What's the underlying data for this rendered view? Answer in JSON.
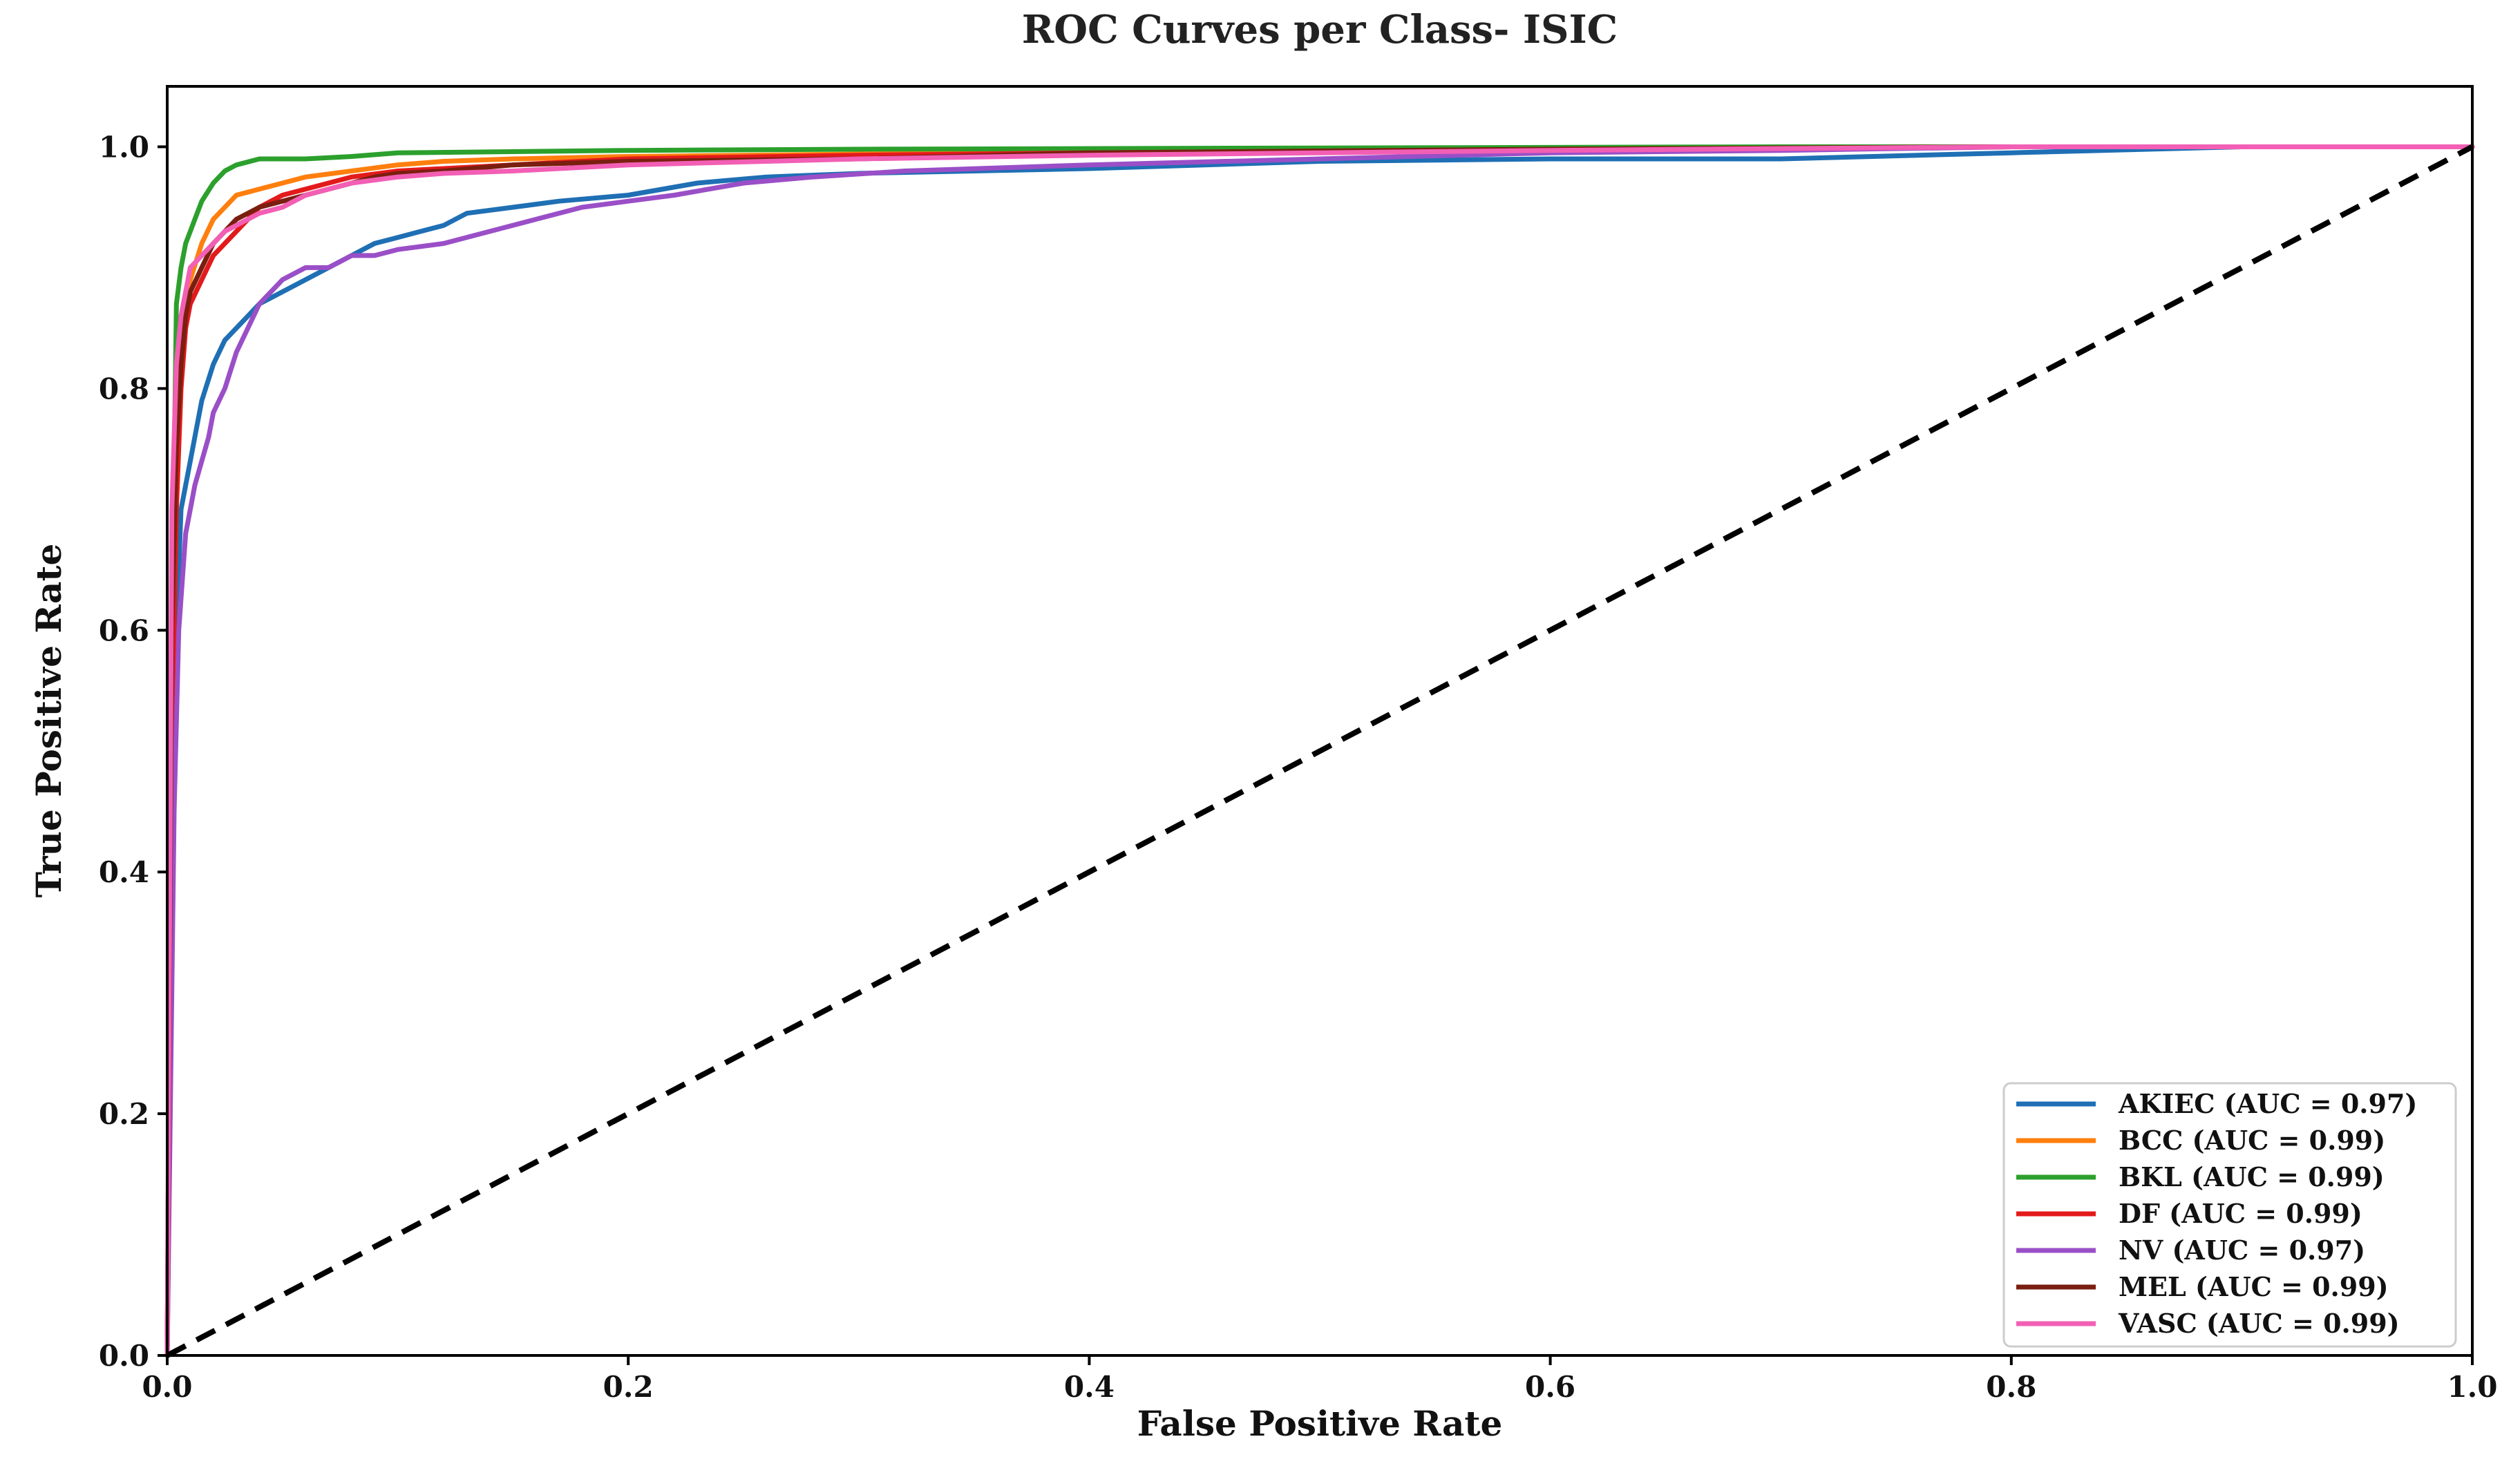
{
  "chart_data": {
    "type": "line",
    "title": "ROC Curves per Class- ISIC",
    "xlabel": "False Positive Rate",
    "ylabel": "True Positive Rate",
    "xlim": [
      0,
      1
    ],
    "ylim": [
      0,
      1.05
    ],
    "xticks": [
      "0.0",
      "0.2",
      "0.4",
      "0.6",
      "0.8",
      "1.0"
    ],
    "yticks": [
      "0.0",
      "0.2",
      "0.4",
      "0.6",
      "0.8",
      "1.0"
    ],
    "grid": false,
    "legend_position": "lower-right",
    "reference_line": {
      "x": [
        0,
        1
      ],
      "y": [
        0,
        1
      ],
      "style": "dashed",
      "color": "#000000"
    },
    "series": [
      {
        "name": "AKIEC (AUC = 0.97)",
        "color": "#1f6fb4",
        "x": [
          0,
          0.002,
          0.004,
          0.006,
          0.008,
          0.01,
          0.012,
          0.015,
          0.02,
          0.025,
          0.03,
          0.035,
          0.04,
          0.05,
          0.06,
          0.07,
          0.08,
          0.09,
          0.1,
          0.11,
          0.12,
          0.13,
          0.15,
          0.17,
          0.2,
          0.23,
          0.26,
          0.3,
          0.35,
          0.4,
          0.45,
          0.5,
          0.6,
          0.7,
          0.8,
          0.9,
          1.0
        ],
        "y": [
          0,
          0.4,
          0.6,
          0.7,
          0.72,
          0.74,
          0.76,
          0.79,
          0.82,
          0.84,
          0.85,
          0.86,
          0.87,
          0.88,
          0.89,
          0.9,
          0.91,
          0.92,
          0.925,
          0.93,
          0.935,
          0.945,
          0.95,
          0.955,
          0.96,
          0.97,
          0.975,
          0.978,
          0.98,
          0.982,
          0.985,
          0.988,
          0.99,
          0.99,
          0.995,
          1.0,
          1.0
        ]
      },
      {
        "name": "BCC (AUC = 0.99)",
        "color": "#ff7f0e",
        "x": [
          0,
          0.002,
          0.004,
          0.006,
          0.008,
          0.01,
          0.015,
          0.02,
          0.025,
          0.03,
          0.04,
          0.05,
          0.06,
          0.08,
          0.1,
          0.12,
          0.15,
          0.2,
          0.3,
          0.4,
          0.5,
          0.6,
          0.7,
          0.8,
          0.9,
          1.0
        ],
        "y": [
          0,
          0.5,
          0.75,
          0.84,
          0.87,
          0.89,
          0.92,
          0.94,
          0.95,
          0.96,
          0.965,
          0.97,
          0.975,
          0.98,
          0.985,
          0.988,
          0.99,
          0.992,
          0.994,
          0.996,
          0.997,
          0.998,
          0.999,
          1.0,
          1.0,
          1.0
        ]
      },
      {
        "name": "BKL (AUC = 0.99)",
        "color": "#2ca02c",
        "x": [
          0,
          0.002,
          0.004,
          0.006,
          0.008,
          0.01,
          0.012,
          0.015,
          0.02,
          0.025,
          0.03,
          0.04,
          0.06,
          0.08,
          0.1,
          0.15,
          0.2,
          0.3,
          0.5,
          0.7,
          1.0
        ],
        "y": [
          0,
          0.6,
          0.87,
          0.9,
          0.92,
          0.93,
          0.94,
          0.955,
          0.97,
          0.98,
          0.985,
          0.99,
          0.99,
          0.992,
          0.995,
          0.996,
          0.997,
          0.998,
          0.999,
          1.0,
          1.0
        ]
      },
      {
        "name": "DF (AUC = 0.99)",
        "color": "#e31a1c",
        "x": [
          0,
          0.002,
          0.004,
          0.006,
          0.008,
          0.01,
          0.015,
          0.02,
          0.025,
          0.03,
          0.035,
          0.04,
          0.05,
          0.06,
          0.08,
          0.1,
          0.15,
          0.2,
          0.3,
          0.4,
          0.6,
          0.8,
          1.0
        ],
        "y": [
          0,
          0.5,
          0.7,
          0.8,
          0.85,
          0.87,
          0.89,
          0.91,
          0.92,
          0.93,
          0.94,
          0.95,
          0.96,
          0.965,
          0.975,
          0.98,
          0.985,
          0.99,
          0.993,
          0.995,
          0.998,
          1.0,
          1.0
        ]
      },
      {
        "name": "NV (AUC = 0.97)",
        "color": "#9a4fc7",
        "x": [
          0,
          0.003,
          0.005,
          0.008,
          0.01,
          0.012,
          0.015,
          0.018,
          0.02,
          0.025,
          0.03,
          0.035,
          0.04,
          0.05,
          0.06,
          0.07,
          0.08,
          0.09,
          0.1,
          0.12,
          0.14,
          0.16,
          0.18,
          0.2,
          0.22,
          0.25,
          0.28,
          0.32,
          0.4,
          0.5,
          0.6,
          0.7,
          0.8,
          0.9,
          1.0
        ],
        "y": [
          0,
          0.45,
          0.6,
          0.68,
          0.7,
          0.72,
          0.74,
          0.76,
          0.78,
          0.8,
          0.83,
          0.85,
          0.87,
          0.89,
          0.9,
          0.9,
          0.91,
          0.91,
          0.915,
          0.92,
          0.93,
          0.94,
          0.95,
          0.955,
          0.96,
          0.97,
          0.975,
          0.98,
          0.985,
          0.99,
          0.995,
          0.997,
          1.0,
          1.0,
          1.0
        ]
      },
      {
        "name": "MEL (AUC = 0.99)",
        "color": "#7a1f10",
        "x": [
          0,
          0.002,
          0.004,
          0.006,
          0.008,
          0.01,
          0.015,
          0.02,
          0.025,
          0.03,
          0.035,
          0.04,
          0.05,
          0.06,
          0.07,
          0.08,
          0.09,
          0.1,
          0.12,
          0.15,
          0.2,
          0.3,
          0.4,
          0.6,
          0.8,
          1.0
        ],
        "y": [
          0,
          0.6,
          0.75,
          0.82,
          0.86,
          0.88,
          0.9,
          0.92,
          0.93,
          0.94,
          0.945,
          0.95,
          0.955,
          0.96,
          0.965,
          0.97,
          0.975,
          0.978,
          0.98,
          0.985,
          0.988,
          0.99,
          0.995,
          0.998,
          1.0,
          1.0
        ]
      },
      {
        "name": "VASC (AUC = 0.99)",
        "color": "#f25fb4",
        "x": [
          0,
          0.002,
          0.004,
          0.006,
          0.008,
          0.01,
          0.015,
          0.02,
          0.025,
          0.03,
          0.04,
          0.05,
          0.06,
          0.08,
          0.1,
          0.12,
          0.15,
          0.2,
          0.3,
          0.4,
          0.5,
          0.6,
          0.8,
          1.0
        ],
        "y": [
          0,
          0.7,
          0.82,
          0.86,
          0.88,
          0.9,
          0.91,
          0.92,
          0.93,
          0.935,
          0.945,
          0.95,
          0.96,
          0.97,
          0.975,
          0.978,
          0.98,
          0.985,
          0.99,
          0.993,
          0.995,
          0.997,
          1.0,
          1.0
        ]
      }
    ]
  }
}
